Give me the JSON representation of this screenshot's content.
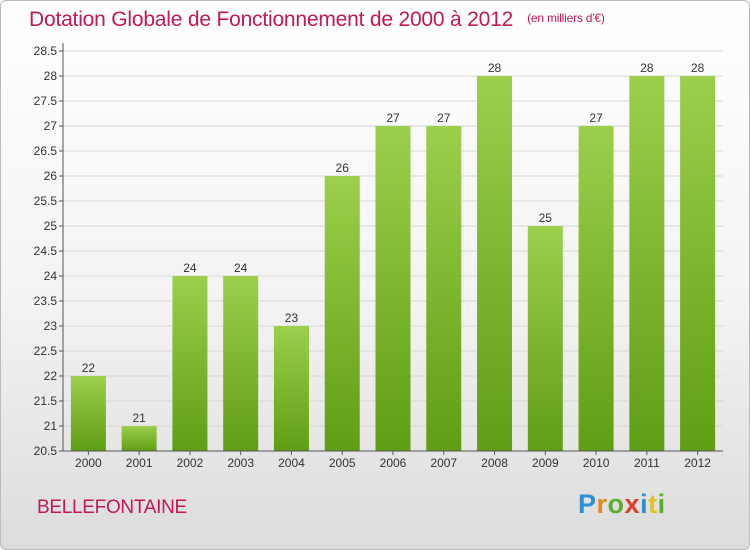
{
  "header": {
    "title": "Dotation Globale de Fonctionnement de 2000 à 2012",
    "subtitle": "(en milliers d'€)"
  },
  "footer": {
    "commune": "BELLEFONTAINE",
    "logo_letters": [
      {
        "ch": "P",
        "color": "#2f8fd6"
      },
      {
        "ch": "r",
        "color": "#e6861f"
      },
      {
        "ch": "o",
        "color": "#5aad2f"
      },
      {
        "ch": "x",
        "color": "#e03a2a"
      },
      {
        "ch": "i",
        "color": "#2f8fd6"
      },
      {
        "ch": "t",
        "color": "#e6c21f"
      },
      {
        "ch": "i",
        "color": "#5aad2f"
      }
    ]
  },
  "chart_data": {
    "type": "bar",
    "title": "Dotation Globale de Fonctionnement de 2000 à 2012",
    "subtitle": "(en milliers d'€)",
    "xlabel": "",
    "ylabel": "",
    "categories": [
      "2000",
      "2001",
      "2002",
      "2003",
      "2004",
      "2005",
      "2006",
      "2007",
      "2008",
      "2009",
      "2010",
      "2011",
      "2012"
    ],
    "values": [
      22,
      21,
      24,
      24,
      23,
      26,
      27,
      27,
      28,
      25,
      27,
      28,
      28
    ],
    "data_labels": [
      "22",
      "21",
      "24",
      "24",
      "23",
      "26",
      "27",
      "27",
      "28",
      "25",
      "27",
      "28",
      "28"
    ],
    "ylim": [
      20.5,
      28.5
    ],
    "yticks": [
      "20.5",
      "21",
      "21.5",
      "22",
      "22.5",
      "23",
      "23.5",
      "24",
      "24.5",
      "25",
      "25.5",
      "26",
      "26.5",
      "27",
      "27.5",
      "28",
      "28.5"
    ],
    "grid": true,
    "legend": "none",
    "colors": {
      "bar_top": "#9ccf4c",
      "bar_bottom": "#5f9e12",
      "grid": "#d7d7d7",
      "axis": "#555555",
      "text": "#333333"
    }
  }
}
